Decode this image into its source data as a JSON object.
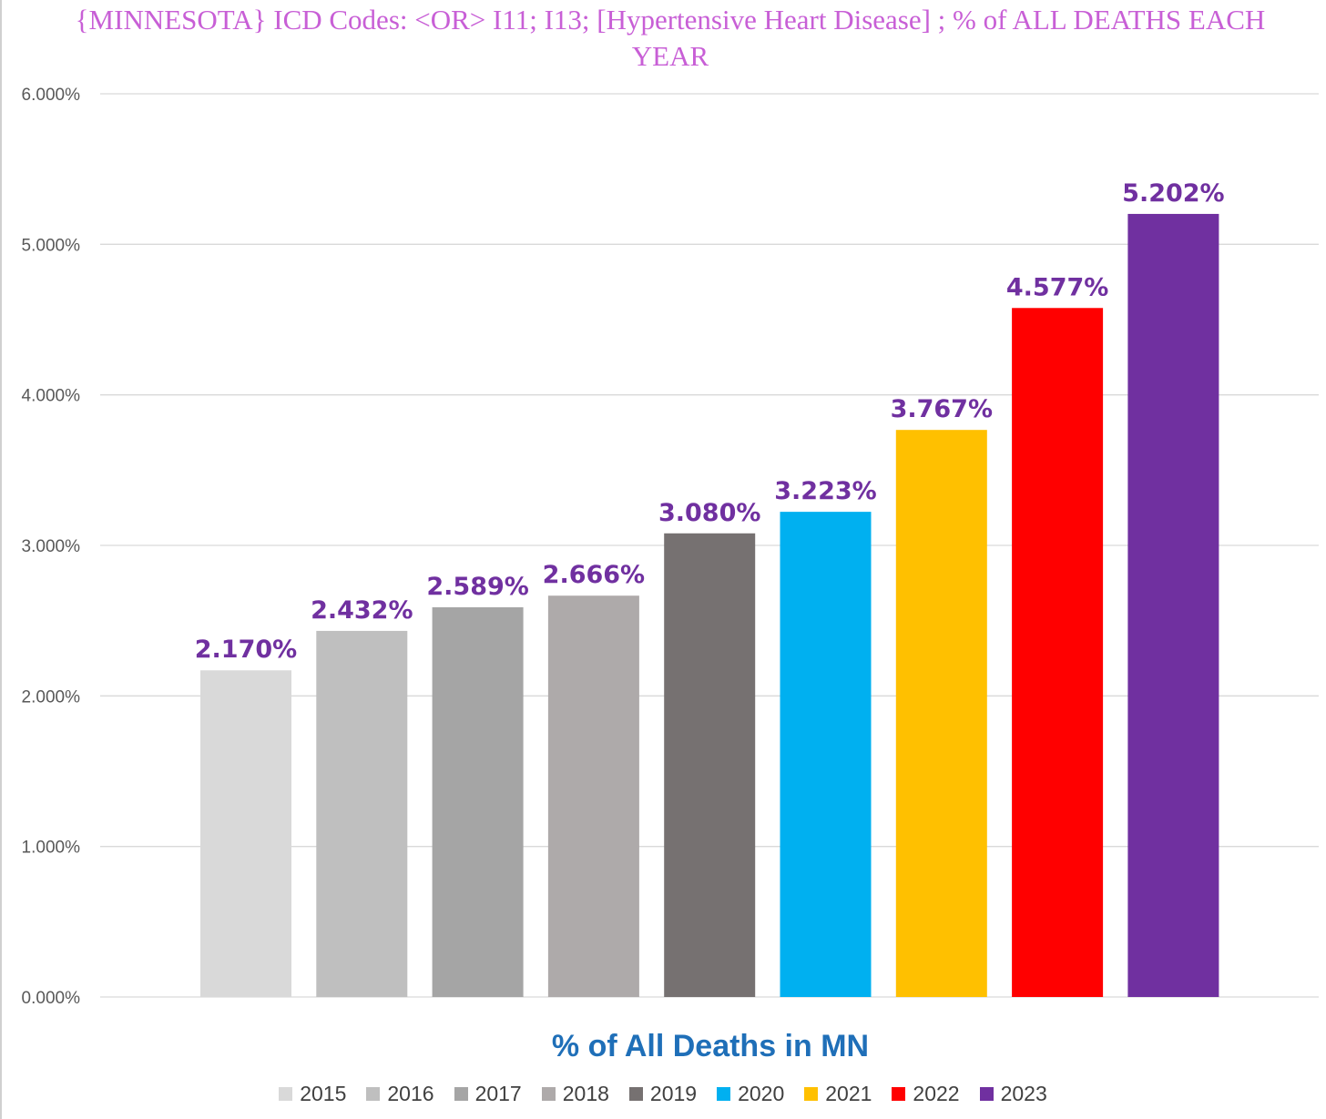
{
  "chart_data": {
    "type": "bar",
    "title": "{MINNESOTA}  ICD Codes: <OR>  I11; I13;  [Hypertensive Heart Disease] ; % of ALL DEATHS EACH YEAR",
    "xlabel": "% of All Deaths in MN",
    "ylabel": "",
    "ylim": [
      0,
      6
    ],
    "yticks": [
      "0.000%",
      "1.000%",
      "2.000%",
      "3.000%",
      "4.000%",
      "5.000%",
      "6.000%"
    ],
    "grid": true,
    "legend_position": "bottom",
    "categories": [
      "2015",
      "2016",
      "2017",
      "2018",
      "2019",
      "2020",
      "2021",
      "2022",
      "2023"
    ],
    "values": [
      2.17,
      2.432,
      2.589,
      2.666,
      3.08,
      3.223,
      3.767,
      4.577,
      5.202
    ],
    "data_labels": [
      "2.170%",
      "2.432%",
      "2.589%",
      "2.666%",
      "3.080%",
      "3.223%",
      "3.767%",
      "4.577%",
      "5.202%"
    ],
    "colors": [
      "#d9d9d9",
      "#bfbfbf",
      "#a5a5a5",
      "#aeaaaa",
      "#767171",
      "#00b0f0",
      "#ffc000",
      "#ff0000",
      "#7030a0"
    ],
    "label_color": "#7030a0",
    "xlabel_color": "#1f6fb8",
    "title_color": "#c85fd6"
  }
}
